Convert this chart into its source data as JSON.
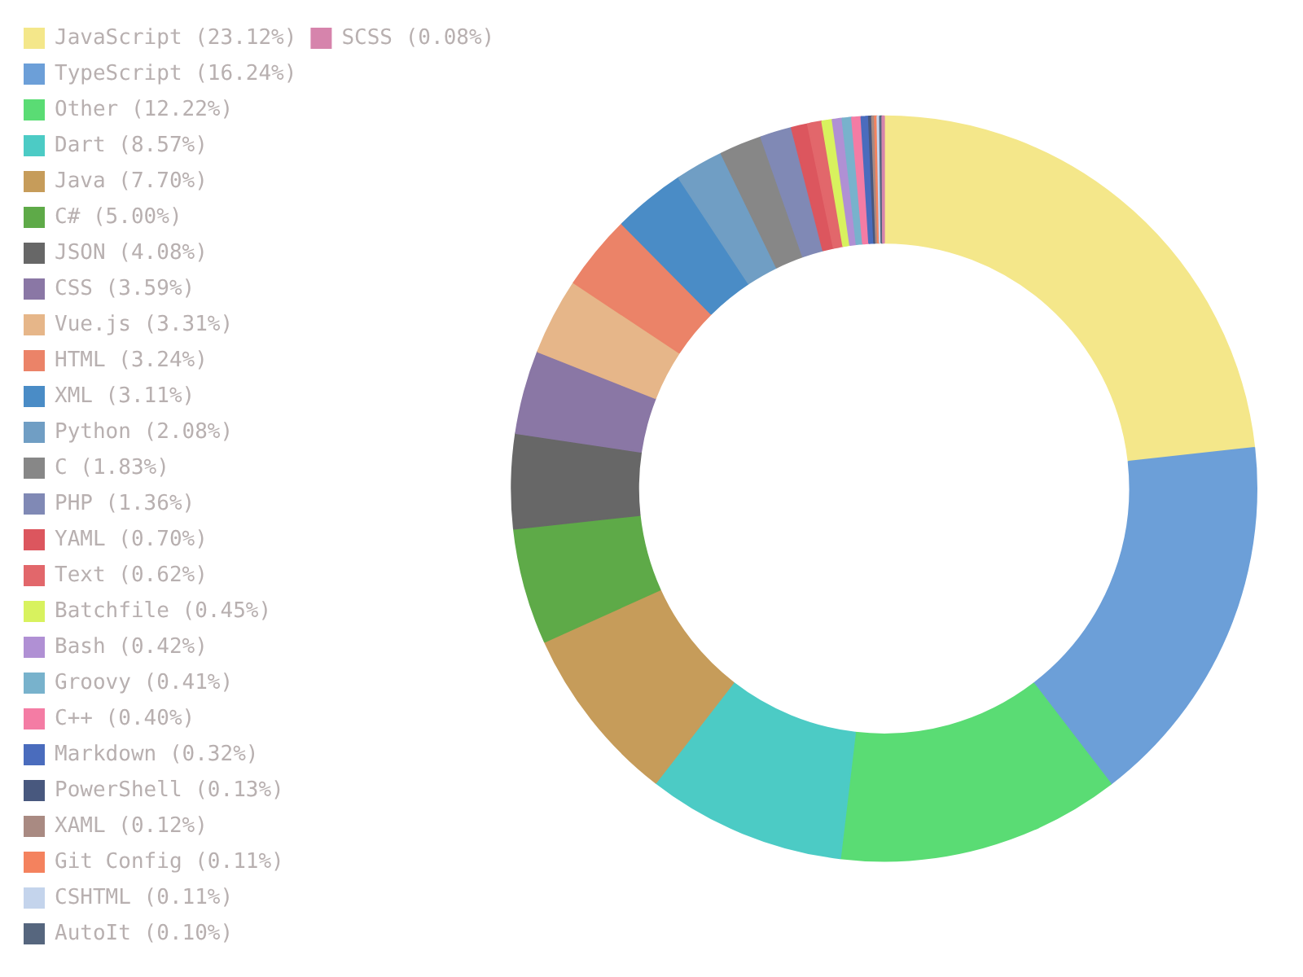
{
  "chart_data": {
    "type": "donut",
    "legend": "left",
    "categories": [
      "JavaScript (23.12%)",
      "TypeScript (16.24%)",
      "Other (12.22%)",
      "Dart (8.57%)",
      "Java (7.70%)",
      "C# (5.00%)",
      "JSON (4.08%)",
      "CSS (3.59%)",
      "Vue.js (3.31%)",
      "HTML (3.24%)",
      "XML (3.11%)",
      "Python (2.08%)",
      "C (1.83%)",
      "PHP (1.36%)",
      "YAML (0.70%)",
      "Text (0.62%)",
      "Batchfile (0.45%)",
      "Bash (0.42%)",
      "Groovy (0.41%)",
      "C++ (0.40%)",
      "Markdown (0.32%)",
      "PowerShell (0.13%)",
      "XAML (0.12%)",
      "Git Config (0.11%)",
      "CSHTML (0.11%)",
      "AutoIt (0.10%)",
      "SCSS (0.08%)"
    ],
    "values": [
      23.12,
      16.24,
      12.22,
      8.57,
      7.7,
      5.0,
      4.08,
      3.59,
      3.31,
      3.24,
      3.11,
      2.08,
      1.83,
      1.36,
      0.7,
      0.62,
      0.45,
      0.42,
      0.41,
      0.4,
      0.32,
      0.13,
      0.12,
      0.11,
      0.11,
      0.1,
      0.08
    ],
    "colors": [
      "#f4e78a",
      "#6c9fd8",
      "#5adc74",
      "#4ccbc5",
      "#c69c5a",
      "#5eaa48",
      "#676767",
      "#8a77a5",
      "#e6b689",
      "#eb8368",
      "#4a8cc6",
      "#709ec4",
      "#878787",
      "#8089b5",
      "#dc565e",
      "#e2676b",
      "#d8f25e",
      "#b090d4",
      "#78b2cc",
      "#f47ca4",
      "#4a6cbd",
      "#48587e",
      "#a98a82",
      "#f4825e",
      "#c4d4ec",
      "#56667e",
      "#d684ac"
    ]
  }
}
